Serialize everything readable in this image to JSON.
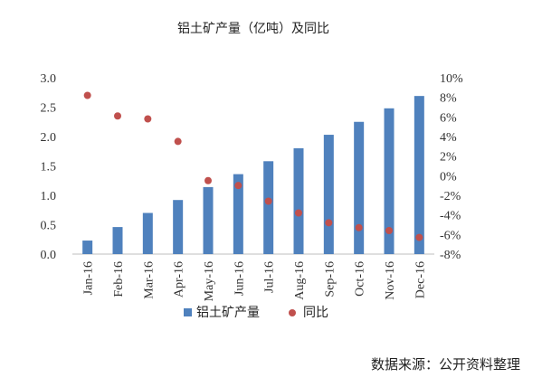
{
  "chart_data": {
    "type": "bar+scatter",
    "title": "铝土矿产量（亿吨）及同比",
    "categories": [
      "Jan-16",
      "Feb-16",
      "Mar-16",
      "Apr-16",
      "May-16",
      "Jun-16",
      "Jul-16",
      "Aug-16",
      "Sep-16",
      "Oct-16",
      "Nov-16",
      "Dec-16"
    ],
    "series": [
      {
        "name": "铝土矿产量",
        "type": "bar",
        "axis": "left",
        "color": "#4f81bd",
        "values": [
          0.23,
          0.46,
          0.7,
          0.92,
          1.14,
          1.36,
          1.58,
          1.8,
          2.03,
          2.25,
          2.48,
          2.69
        ]
      },
      {
        "name": "同比",
        "type": "scatter",
        "axis": "right",
        "color": "#c0504d",
        "values": [
          8.2,
          6.1,
          5.8,
          3.5,
          -0.5,
          -1.0,
          -2.6,
          -3.8,
          -4.8,
          -5.3,
          -5.6,
          -6.3
        ]
      }
    ],
    "y_left": {
      "min": 0,
      "max": 3.0,
      "ticks": [
        "0.0",
        "0.5",
        "1.0",
        "1.5",
        "2.0",
        "2.5",
        "3.0"
      ]
    },
    "y_right": {
      "min": -8,
      "max": 10,
      "ticks": [
        "-8%",
        "-6%",
        "-4%",
        "-2%",
        "0%",
        "2%",
        "4%",
        "6%",
        "8%",
        "10%"
      ]
    },
    "legend_position": "bottom"
  },
  "source": "数据来源：公开资料整理"
}
